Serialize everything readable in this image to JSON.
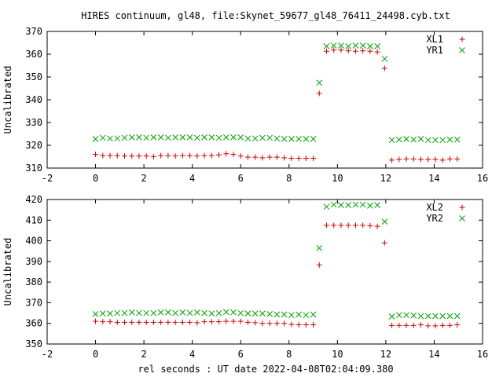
{
  "colors": {
    "series1": "#d00000",
    "series2": "#00a000",
    "axis": "#000000"
  },
  "chart_data": {
    "title": "HIRES continuum, gl48, file:Skynet_59677_gl48_76411_24498.cyb.txt",
    "xlabel": "rel seconds : UT date 2022-04-08T02:04:09.380",
    "panels": [
      {
        "type": "scatter",
        "ylabel": "Uncalibrated",
        "xlim": [
          -2,
          16
        ],
        "ylim": [
          310,
          370
        ],
        "xticks": [
          -2,
          0,
          2,
          4,
          6,
          8,
          10,
          12,
          14,
          16
        ],
        "yticks": [
          310,
          320,
          330,
          340,
          350,
          360,
          370
        ],
        "legend": "top-right",
        "series": [
          {
            "name": "XL1",
            "marker": "plus",
            "color": "#d00000",
            "x": [
              0,
              0.3,
              0.6,
              0.9,
              1.2,
              1.5,
              1.8,
              2.1,
              2.4,
              2.7,
              3.0,
              3.3,
              3.6,
              3.9,
              4.2,
              4.5,
              4.8,
              5.1,
              5.4,
              5.7,
              6.0,
              6.3,
              6.6,
              6.9,
              7.2,
              7.5,
              7.8,
              8.1,
              8.4,
              8.7,
              9.0,
              9.25,
              9.55,
              9.85,
              10.15,
              10.45,
              10.75,
              11.05,
              11.35,
              11.65,
              11.95,
              12.25,
              12.55,
              12.85,
              13.15,
              13.45,
              13.75,
              14.05,
              14.35,
              14.65,
              14.95
            ],
            "y": [
              316,
              315.5,
              315.5,
              315.5,
              315.3,
              315.3,
              315.3,
              315.3,
              315,
              315.5,
              315.5,
              315.3,
              315.5,
              315.5,
              315.3,
              315.5,
              315.5,
              315.8,
              316.3,
              316,
              315.3,
              314.8,
              314.8,
              314.5,
              314.8,
              314.8,
              314.5,
              314.3,
              314.3,
              314.3,
              314.3,
              342.8,
              361.3,
              361.8,
              361.8,
              361.5,
              361.3,
              361.5,
              361.3,
              361,
              353.8,
              313.5,
              313.8,
              314,
              314,
              313.8,
              313.8,
              313.8,
              313.5,
              314,
              314
            ]
          },
          {
            "name": "YR1",
            "marker": "cross",
            "color": "#00a000",
            "x": [
              0,
              0.3,
              0.6,
              0.9,
              1.2,
              1.5,
              1.8,
              2.1,
              2.4,
              2.7,
              3.0,
              3.3,
              3.6,
              3.9,
              4.2,
              4.5,
              4.8,
              5.1,
              5.4,
              5.7,
              6.0,
              6.3,
              6.6,
              6.9,
              7.2,
              7.5,
              7.8,
              8.1,
              8.4,
              8.7,
              9.0,
              9.25,
              9.55,
              9.85,
              10.15,
              10.45,
              10.75,
              11.05,
              11.35,
              11.65,
              11.95,
              12.25,
              12.55,
              12.85,
              13.15,
              13.45,
              13.75,
              14.05,
              14.35,
              14.65,
              14.95
            ],
            "y": [
              322.8,
              323.3,
              323,
              323,
              323.3,
              323.5,
              323.5,
              323.3,
              323.5,
              323.5,
              323.3,
              323.5,
              323.5,
              323.5,
              323.3,
              323.5,
              323.5,
              323.3,
              323.5,
              323.5,
              323.5,
              323,
              323,
              323.3,
              323.3,
              323,
              322.8,
              322.8,
              322.8,
              322.8,
              322.8,
              347.5,
              363.5,
              363.8,
              363.8,
              363.5,
              363.8,
              363.8,
              363.5,
              363.5,
              358,
              322.3,
              322.5,
              322.8,
              322.5,
              322.8,
              322.3,
              322.3,
              322.3,
              322.5,
              322.5
            ]
          }
        ]
      },
      {
        "type": "scatter",
        "ylabel": "Uncalibrated",
        "xlim": [
          -2,
          16
        ],
        "ylim": [
          350,
          420
        ],
        "xticks": [
          -2,
          0,
          2,
          4,
          6,
          8,
          10,
          12,
          14,
          16
        ],
        "yticks": [
          350,
          360,
          370,
          380,
          390,
          400,
          410,
          420
        ],
        "legend": "top-right",
        "series": [
          {
            "name": "XL2",
            "marker": "plus",
            "color": "#d00000",
            "x": [
              0,
              0.3,
              0.6,
              0.9,
              1.2,
              1.5,
              1.8,
              2.1,
              2.4,
              2.7,
              3.0,
              3.3,
              3.6,
              3.9,
              4.2,
              4.5,
              4.8,
              5.1,
              5.4,
              5.7,
              6.0,
              6.3,
              6.6,
              6.9,
              7.2,
              7.5,
              7.8,
              8.1,
              8.4,
              8.7,
              9.0,
              9.25,
              9.55,
              9.85,
              10.15,
              10.45,
              10.75,
              11.05,
              11.35,
              11.65,
              11.95,
              12.25,
              12.55,
              12.85,
              13.15,
              13.45,
              13.75,
              14.05,
              14.35,
              14.65,
              14.95
            ],
            "y": [
              361,
              360.8,
              360.8,
              360.5,
              360.5,
              360.5,
              360.5,
              360.5,
              360.5,
              360.5,
              360.5,
              360.5,
              360.5,
              360.5,
              360.3,
              360.8,
              360.8,
              360.8,
              361,
              361,
              361,
              360.5,
              360.3,
              360,
              360,
              360,
              360,
              359.5,
              359.3,
              359.3,
              359.3,
              388.3,
              407.5,
              407.5,
              407.5,
              407.5,
              407.5,
              407.5,
              407.3,
              407,
              399,
              359,
              359,
              359,
              359,
              359.3,
              358.8,
              358.8,
              359,
              359,
              359.3
            ]
          },
          {
            "name": "YR2",
            "marker": "cross",
            "color": "#00a000",
            "x": [
              0,
              0.3,
              0.6,
              0.9,
              1.2,
              1.5,
              1.8,
              2.1,
              2.4,
              2.7,
              3.0,
              3.3,
              3.6,
              3.9,
              4.2,
              4.5,
              4.8,
              5.1,
              5.4,
              5.7,
              6.0,
              6.3,
              6.6,
              6.9,
              7.2,
              7.5,
              7.8,
              8.1,
              8.4,
              8.7,
              9.0,
              9.25,
              9.55,
              9.85,
              10.15,
              10.45,
              10.75,
              11.05,
              11.35,
              11.65,
              11.95,
              12.25,
              12.55,
              12.85,
              13.15,
              13.45,
              13.75,
              14.05,
              14.35,
              14.65,
              14.95
            ],
            "y": [
              364.5,
              364.8,
              364.8,
              365,
              365,
              365.3,
              365,
              365,
              365,
              365.3,
              365.3,
              365,
              365.3,
              365,
              365.3,
              365,
              364.8,
              365,
              365.5,
              365.3,
              365,
              364.8,
              364.8,
              364.8,
              364.5,
              364.3,
              364.3,
              364,
              364.3,
              364,
              364.3,
              396.5,
              416.5,
              417.5,
              417.3,
              417.3,
              417.5,
              417.5,
              417,
              417.3,
              409.3,
              363.3,
              364,
              364,
              363.8,
              363.5,
              363.5,
              363.5,
              363.5,
              363.5,
              363.5
            ]
          }
        ]
      }
    ]
  }
}
